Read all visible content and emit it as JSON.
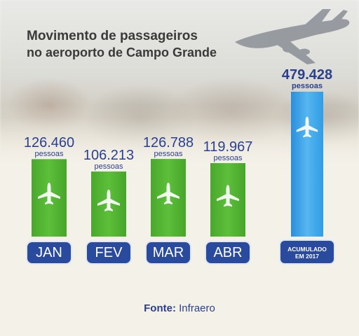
{
  "header": {
    "title": "Movimento de passageiros",
    "subtitle": "no aeroporto de Campo Grande"
  },
  "colors": {
    "month_bar": "#5cbf3a",
    "accum_bar": "#2f9de6",
    "label_blue": "#2a3f8f",
    "pill_blue": "#2a4a9d"
  },
  "icons": {
    "bar_icon": "airplane-icon"
  },
  "chart_data": {
    "type": "bar",
    "title": "Movimento de passageiros no aeroporto de Campo Grande",
    "unit": "pessoas",
    "categories": [
      "JAN",
      "FEV",
      "MAR",
      "ABR"
    ],
    "values": [
      126460,
      106213,
      126788,
      119967
    ],
    "value_labels": [
      "126.460",
      "106.213",
      "126.788",
      "119.967"
    ],
    "accumulated": {
      "label_line1": "ACUMULADO",
      "label_line2": "EM 2017",
      "value": 479428,
      "value_label": "479.428"
    }
  },
  "footer": {
    "source_label": "Fonte:",
    "source_value": "Infraero"
  }
}
